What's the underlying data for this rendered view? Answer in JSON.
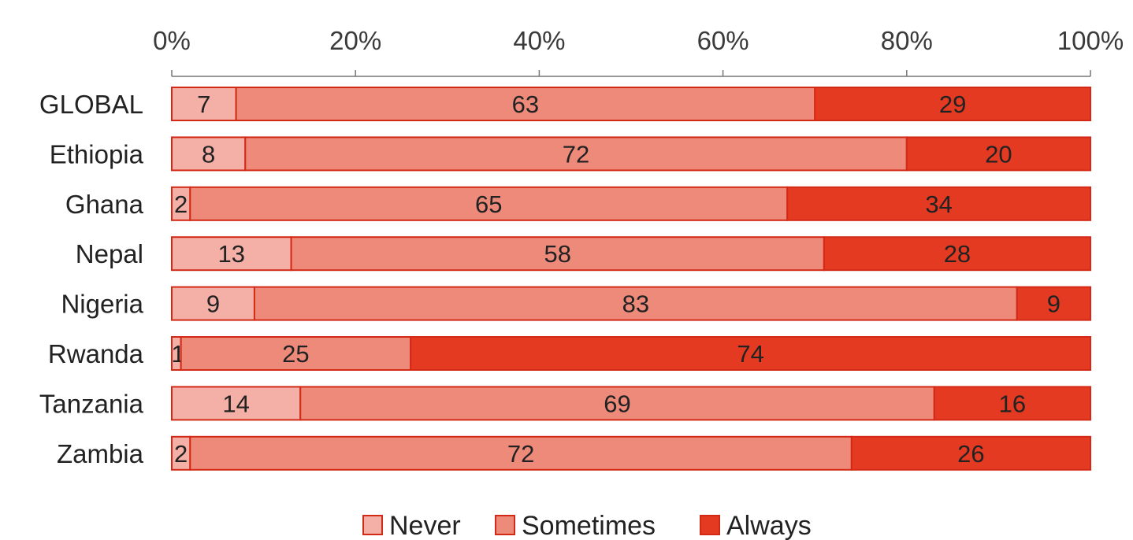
{
  "chart_data": {
    "type": "bar",
    "orientation": "horizontal",
    "stacked": true,
    "categories": [
      "GLOBAL",
      "Ethiopia",
      "Ghana",
      "Nepal",
      "Nigeria",
      "Rwanda",
      "Tanzania",
      "Zambia"
    ],
    "series": [
      {
        "name": "Never",
        "values": [
          7,
          8,
          2,
          13,
          9,
          1,
          14,
          2
        ],
        "color": "#F4B0A6"
      },
      {
        "name": "Sometimes",
        "values": [
          63,
          72,
          65,
          58,
          83,
          25,
          69,
          72
        ],
        "color": "#EE8A7A"
      },
      {
        "name": "Always",
        "values": [
          29,
          20,
          34,
          28,
          9,
          74,
          16,
          26
        ],
        "color": "#E53A22"
      }
    ],
    "x_ticks": [
      "0%",
      "20%",
      "40%",
      "60%",
      "80%",
      "100%"
    ],
    "xlim": [
      0,
      100
    ],
    "axis_position": "top",
    "border_color": "#D22A16",
    "legend_position": "bottom",
    "grid": false
  }
}
